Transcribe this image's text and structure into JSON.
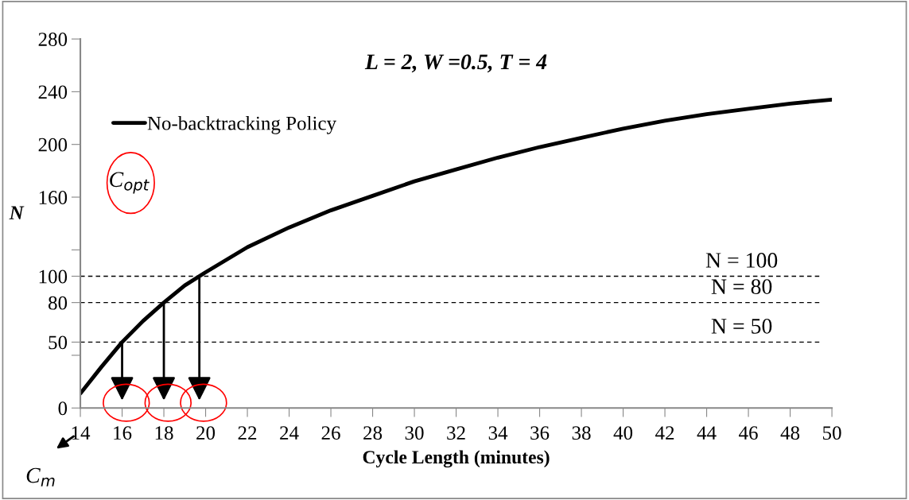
{
  "chart_data": {
    "type": "line",
    "title": "L = 2, W =0.5, T = 4",
    "xlabel": "Cycle Length (minutes)",
    "ylabel": "N",
    "x": [
      14,
      15,
      16,
      17,
      18,
      19,
      20,
      22,
      24,
      26,
      28,
      30,
      32,
      34,
      36,
      38,
      40,
      42,
      44,
      46,
      48,
      50
    ],
    "series": [
      {
        "name": "No-backtracking Policy",
        "color": "#000000",
        "values": [
          11,
          31,
          50,
          66,
          80,
          93,
          103,
          122,
          137,
          150,
          161,
          172,
          181,
          190,
          198,
          205,
          212,
          218,
          223,
          227,
          231,
          234
        ]
      }
    ],
    "xlim": [
      14,
      50
    ],
    "xticks": [
      14,
      16,
      18,
      20,
      22,
      24,
      26,
      28,
      30,
      32,
      34,
      36,
      38,
      40,
      42,
      44,
      46,
      48,
      50
    ],
    "ylim": [
      0,
      280
    ],
    "yticks": [
      0,
      {
        "value": 40,
        "label": null
      },
      50,
      80,
      100,
      {
        "value": 120,
        "label": null
      },
      160,
      200,
      240,
      280
    ],
    "ref_lines": [
      {
        "axis": "y",
        "value": 100,
        "label": "N = 100",
        "line_style": "dashed",
        "color": "#000000"
      },
      {
        "axis": "y",
        "value": 80,
        "label": "N = 80",
        "line_style": "dashed",
        "color": "#000000"
      },
      {
        "axis": "y",
        "value": 50,
        "label": "N = 50",
        "line_style": "dashed",
        "color": "#000000"
      }
    ],
    "annotations": [
      "C$_{opt}$",
      "C$_{m}$"
    ],
    "grid": false,
    "legend": "top left",
    "marker": "none",
    "line_style": "solid"
  }
}
